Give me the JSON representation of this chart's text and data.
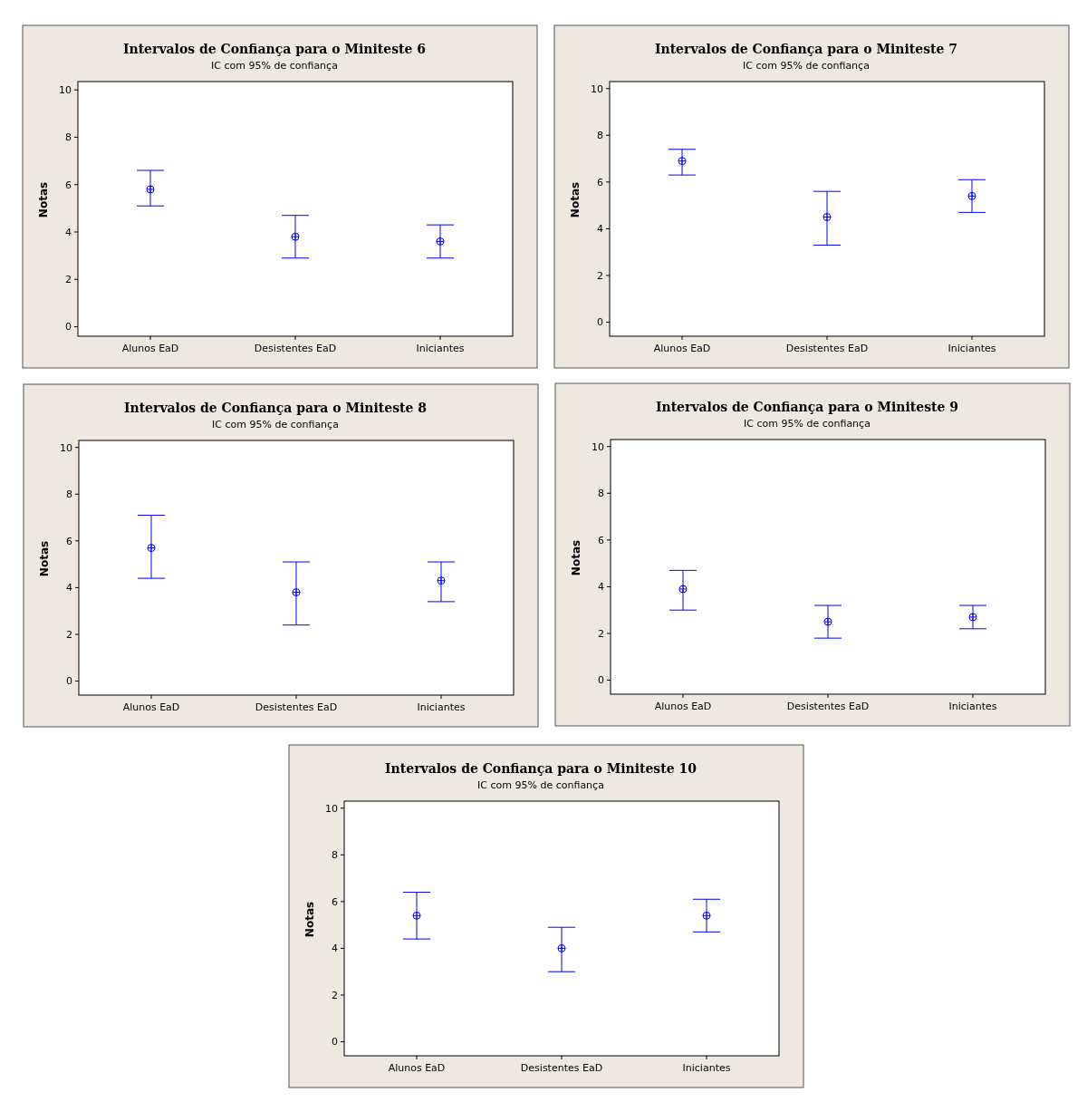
{
  "chart_data": [
    {
      "type": "scatter",
      "title": "Intervalos de Confiança para o Miniteste 6",
      "subtitle": "IC com 95% de confiança",
      "ylabel": "Notas",
      "categories": [
        "Alunos EaD",
        "Desistentes EaD",
        "Iniciantes"
      ],
      "values": [
        5.8,
        3.8,
        3.6
      ],
      "errors": [
        [
          5.1,
          6.6
        ],
        [
          2.9,
          4.7
        ],
        [
          2.9,
          4.3
        ]
      ],
      "color": "#0000ff",
      "marker": "circle",
      "ylim": [
        -0.4,
        10.35
      ],
      "yticks": [
        0,
        2,
        4,
        6,
        8,
        10
      ],
      "grid": false
    },
    {
      "type": "scatter",
      "title": "Intervalos de Confiança para o Miniteste 7",
      "subtitle": "IC com 95% de confiança",
      "ylabel": "Notas",
      "categories": [
        "Alunos EaD",
        "Desistentes EaD",
        "Iniciantes"
      ],
      "values": [
        6.9,
        4.5,
        5.4
      ],
      "errors": [
        [
          6.3,
          7.4
        ],
        [
          3.3,
          5.6
        ],
        [
          4.7,
          6.1
        ]
      ],
      "color": "#0000ff",
      "marker": "circle",
      "ylim": [
        -0.6,
        10.3
      ],
      "yticks": [
        0,
        2,
        4,
        6,
        8,
        10
      ],
      "grid": false
    },
    {
      "type": "scatter",
      "title": "Intervalos de Confiança para o Miniteste 8",
      "subtitle": "IC com 95% de confiança",
      "ylabel": "Notas",
      "categories": [
        "Alunos EaD",
        "Desistentes EaD",
        "Iniciantes"
      ],
      "values": [
        5.7,
        3.8,
        4.3
      ],
      "errors": [
        [
          4.4,
          7.1
        ],
        [
          2.4,
          5.1
        ],
        [
          3.4,
          5.1
        ]
      ],
      "color": "#0000ff",
      "marker": "circle",
      "ylim": [
        -0.6,
        10.3
      ],
      "yticks": [
        0,
        2,
        4,
        6,
        8,
        10
      ],
      "grid": false
    },
    {
      "type": "scatter",
      "title": "Intervalos de Confiança para o Miniteste 9",
      "subtitle": "IC com 95% de confiança",
      "ylabel": "Notas",
      "categories": [
        "Alunos EaD",
        "Desistentes EaD",
        "Iniciantes"
      ],
      "values": [
        3.9,
        2.5,
        2.7
      ],
      "errors": [
        [
          3.0,
          4.7
        ],
        [
          1.8,
          3.2
        ],
        [
          2.2,
          3.2
        ]
      ],
      "color": "#0000ff",
      "marker": "circle",
      "ylim": [
        -0.6,
        10.3
      ],
      "yticks": [
        0,
        2,
        4,
        6,
        8,
        10
      ],
      "grid": false
    },
    {
      "type": "scatter",
      "title": "Intervalos de Confiança para o Miniteste 10",
      "subtitle": "IC com 95% de confiança",
      "ylabel": "Notas",
      "categories": [
        "Alunos EaD",
        "Desistentes EaD",
        "Iniciantes"
      ],
      "values": [
        5.4,
        4.0,
        5.4
      ],
      "errors": [
        [
          4.4,
          6.4
        ],
        [
          3.0,
          4.9
        ],
        [
          4.7,
          6.1
        ]
      ],
      "color": "#0000ff",
      "marker": "circle",
      "ylim": [
        -0.6,
        10.3
      ],
      "yticks": [
        0,
        2,
        4,
        6,
        8,
        10
      ],
      "grid": false
    }
  ]
}
